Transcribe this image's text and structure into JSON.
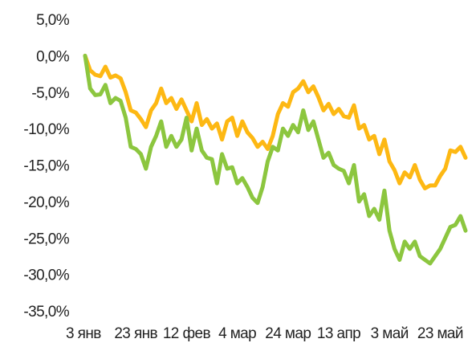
{
  "chart_data": {
    "type": "line",
    "title": "",
    "xlabel": "",
    "ylabel": "",
    "ylim": [
      -35,
      5
    ],
    "yticks": [
      5,
      0,
      -5,
      -10,
      -15,
      -20,
      -25,
      -30,
      -35
    ],
    "ytick_labels": [
      "5,0%",
      "0,0%",
      "-5,0%",
      "-10,0%",
      "-15,0%",
      "-20,0%",
      "-25,0%",
      "-30,0%",
      "-35,0%"
    ],
    "x_axis": "date",
    "xlim": [
      "2023-01-03",
      "2023-06-02"
    ],
    "xticks": [
      "2023-01-03",
      "2023-01-23",
      "2023-02-12",
      "2023-03-04",
      "2023-03-24",
      "2023-04-13",
      "2023-05-03",
      "2023-05-23"
    ],
    "xtick_labels": [
      "3 янв",
      "23 янв",
      "12 фев",
      "4 мар",
      "24 мар",
      "13 апр",
      "3 май",
      "23 май"
    ],
    "grid": false,
    "legend": "none",
    "colors": [
      "#FDB813",
      "#8CC63F"
    ],
    "series": [
      {
        "color": "#FDB813",
        "points": [
          [
            "2023-01-03",
            0.0
          ],
          [
            "2023-01-05",
            -2.0
          ],
          [
            "2023-01-07",
            -2.6
          ],
          [
            "2023-01-09",
            -2.8
          ],
          [
            "2023-01-11",
            -1.5
          ],
          [
            "2023-01-13",
            -3.0
          ],
          [
            "2023-01-15",
            -2.7
          ],
          [
            "2023-01-17",
            -3.1
          ],
          [
            "2023-01-19",
            -5.0
          ],
          [
            "2023-01-21",
            -7.5
          ],
          [
            "2023-01-23",
            -7.8
          ],
          [
            "2023-01-25",
            -8.7
          ],
          [
            "2023-01-27",
            -9.8
          ],
          [
            "2023-01-29",
            -7.5
          ],
          [
            "2023-01-31",
            -6.5
          ],
          [
            "2023-02-02",
            -4.5
          ],
          [
            "2023-02-04",
            -6.5
          ],
          [
            "2023-02-06",
            -5.8
          ],
          [
            "2023-02-08",
            -7.3
          ],
          [
            "2023-02-10",
            -6.0
          ],
          [
            "2023-02-12",
            -7.5
          ],
          [
            "2023-02-14",
            -9.0
          ],
          [
            "2023-02-16",
            -6.5
          ],
          [
            "2023-02-18",
            -9.5
          ],
          [
            "2023-02-20",
            -8.7
          ],
          [
            "2023-02-22",
            -10.0
          ],
          [
            "2023-02-24",
            -9.3
          ],
          [
            "2023-02-26",
            -11.5
          ],
          [
            "2023-02-28",
            -9.0
          ],
          [
            "2023-03-02",
            -8.5
          ],
          [
            "2023-03-04",
            -11.0
          ],
          [
            "2023-03-06",
            -9.0
          ],
          [
            "2023-03-08",
            -10.5
          ],
          [
            "2023-03-10",
            -11.3
          ],
          [
            "2023-03-12",
            -12.5
          ],
          [
            "2023-03-14",
            -11.8
          ],
          [
            "2023-03-16",
            -12.8
          ],
          [
            "2023-03-18",
            -11.0
          ],
          [
            "2023-03-20",
            -8.0
          ],
          [
            "2023-03-22",
            -6.5
          ],
          [
            "2023-03-24",
            -7.0
          ],
          [
            "2023-03-26",
            -5.0
          ],
          [
            "2023-03-28",
            -4.5
          ],
          [
            "2023-03-30",
            -3.5
          ],
          [
            "2023-04-01",
            -5.0
          ],
          [
            "2023-04-03",
            -4.2
          ],
          [
            "2023-04-05",
            -5.7
          ],
          [
            "2023-04-07",
            -7.5
          ],
          [
            "2023-04-09",
            -6.6
          ],
          [
            "2023-04-11",
            -8.0
          ],
          [
            "2023-04-13",
            -7.3
          ],
          [
            "2023-04-15",
            -8.3
          ],
          [
            "2023-04-17",
            -8.5
          ],
          [
            "2023-04-19",
            -6.8
          ],
          [
            "2023-04-21",
            -10.0
          ],
          [
            "2023-04-23",
            -9.5
          ],
          [
            "2023-04-25",
            -11.5
          ],
          [
            "2023-04-27",
            -11.0
          ],
          [
            "2023-04-29",
            -13.5
          ],
          [
            "2023-05-01",
            -11.5
          ],
          [
            "2023-05-03",
            -14.5
          ],
          [
            "2023-05-05",
            -15.7
          ],
          [
            "2023-05-07",
            -17.5
          ],
          [
            "2023-05-09",
            -16.0
          ],
          [
            "2023-05-11",
            -16.7
          ],
          [
            "2023-05-13",
            -15.0
          ],
          [
            "2023-05-15",
            -17.0
          ],
          [
            "2023-05-17",
            -18.2
          ],
          [
            "2023-05-19",
            -17.8
          ],
          [
            "2023-05-21",
            -17.8
          ],
          [
            "2023-05-23",
            -16.5
          ],
          [
            "2023-05-25",
            -15.5
          ],
          [
            "2023-05-27",
            -13.0
          ],
          [
            "2023-05-29",
            -13.2
          ],
          [
            "2023-05-31",
            -12.5
          ],
          [
            "2023-06-02",
            -14.0
          ]
        ]
      },
      {
        "color": "#8CC63F",
        "points": [
          [
            "2023-01-03",
            0.0
          ],
          [
            "2023-01-05",
            -4.5
          ],
          [
            "2023-01-07",
            -5.4
          ],
          [
            "2023-01-09",
            -5.3
          ],
          [
            "2023-01-11",
            -4.0
          ],
          [
            "2023-01-13",
            -6.5
          ],
          [
            "2023-01-15",
            -5.8
          ],
          [
            "2023-01-17",
            -6.2
          ],
          [
            "2023-01-19",
            -8.5
          ],
          [
            "2023-01-21",
            -12.5
          ],
          [
            "2023-01-23",
            -12.8
          ],
          [
            "2023-01-25",
            -13.5
          ],
          [
            "2023-01-27",
            -15.5
          ],
          [
            "2023-01-29",
            -12.5
          ],
          [
            "2023-01-31",
            -11.0
          ],
          [
            "2023-02-02",
            -9.0
          ],
          [
            "2023-02-04",
            -12.5
          ],
          [
            "2023-02-06",
            -11.0
          ],
          [
            "2023-02-08",
            -12.5
          ],
          [
            "2023-02-10",
            -11.5
          ],
          [
            "2023-02-12",
            -8.5
          ],
          [
            "2023-02-14",
            -13.0
          ],
          [
            "2023-02-16",
            -10.0
          ],
          [
            "2023-02-18",
            -13.0
          ],
          [
            "2023-02-20",
            -14.0
          ],
          [
            "2023-02-22",
            -14.2
          ],
          [
            "2023-02-24",
            -17.5
          ],
          [
            "2023-02-26",
            -13.5
          ],
          [
            "2023-02-28",
            -15.5
          ],
          [
            "2023-03-02",
            -15.3
          ],
          [
            "2023-03-04",
            -17.5
          ],
          [
            "2023-03-06",
            -16.8
          ],
          [
            "2023-03-08",
            -18.0
          ],
          [
            "2023-03-10",
            -19.5
          ],
          [
            "2023-03-12",
            -20.2
          ],
          [
            "2023-03-14",
            -18.0
          ],
          [
            "2023-03-16",
            -14.5
          ],
          [
            "2023-03-18",
            -12.5
          ],
          [
            "2023-03-20",
            -13.0
          ],
          [
            "2023-03-22",
            -10.0
          ],
          [
            "2023-03-24",
            -11.0
          ],
          [
            "2023-03-26",
            -9.5
          ],
          [
            "2023-03-28",
            -10.5
          ],
          [
            "2023-03-30",
            -7.5
          ],
          [
            "2023-04-01",
            -10.2
          ],
          [
            "2023-04-03",
            -9.0
          ],
          [
            "2023-04-05",
            -11.5
          ],
          [
            "2023-04-07",
            -14.0
          ],
          [
            "2023-04-09",
            -13.3
          ],
          [
            "2023-04-11",
            -15.0
          ],
          [
            "2023-04-13",
            -15.5
          ],
          [
            "2023-04-15",
            -15.8
          ],
          [
            "2023-04-17",
            -17.5
          ],
          [
            "2023-04-19",
            -15.0
          ],
          [
            "2023-04-21",
            -20.0
          ],
          [
            "2023-04-23",
            -19.0
          ],
          [
            "2023-04-25",
            -22.0
          ],
          [
            "2023-04-27",
            -21.0
          ],
          [
            "2023-04-29",
            -22.5
          ],
          [
            "2023-05-01",
            -18.5
          ],
          [
            "2023-05-03",
            -24.0
          ],
          [
            "2023-05-05",
            -26.5
          ],
          [
            "2023-05-07",
            -28.0
          ],
          [
            "2023-05-09",
            -25.5
          ],
          [
            "2023-05-11",
            -26.5
          ],
          [
            "2023-05-13",
            -25.5
          ],
          [
            "2023-05-15",
            -27.5
          ],
          [
            "2023-05-17",
            -28.0
          ],
          [
            "2023-05-19",
            -28.5
          ],
          [
            "2023-05-21",
            -27.5
          ],
          [
            "2023-05-23",
            -26.5
          ],
          [
            "2023-05-25",
            -25.0
          ],
          [
            "2023-05-27",
            -23.5
          ],
          [
            "2023-05-29",
            -23.2
          ],
          [
            "2023-05-31",
            -22.0
          ],
          [
            "2023-06-02",
            -24.0
          ]
        ]
      }
    ]
  }
}
